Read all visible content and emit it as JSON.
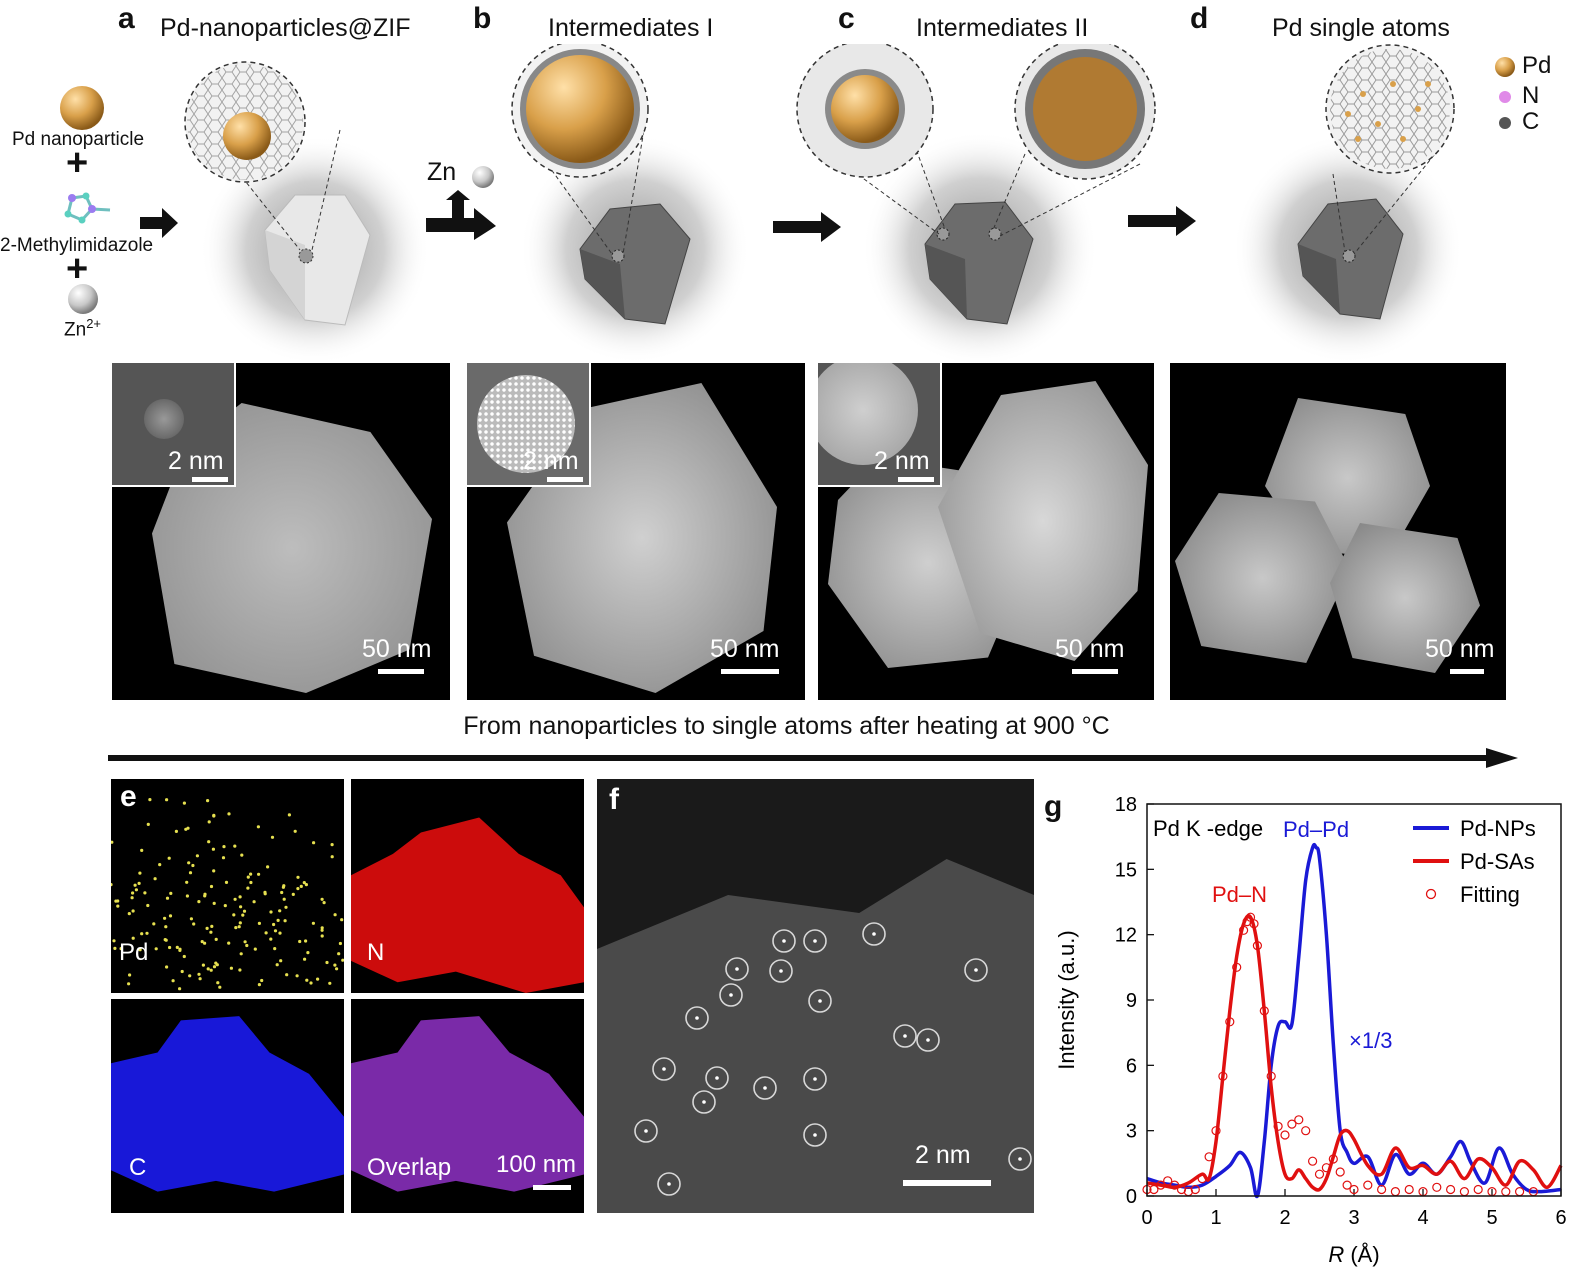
{
  "panels": {
    "a": {
      "letter": "a",
      "title": "Pd-nanoparticles@ZIF"
    },
    "b": {
      "letter": "b",
      "title": "Intermediates I"
    },
    "c": {
      "letter": "c",
      "title": "Intermediates II"
    },
    "d": {
      "letter": "d",
      "title": "Pd single atoms"
    },
    "e": {
      "letter": "e"
    },
    "f": {
      "letter": "f"
    },
    "g": {
      "letter": "g"
    }
  },
  "reactants": {
    "pd_np": "Pd nanoparticle",
    "plus": "+",
    "imidazole": "2-Methylimidazole",
    "zn": "Zn",
    "zn_charge": "2+"
  },
  "zn_release": "Zn",
  "legend": {
    "pd": "Pd",
    "n": "N",
    "c": "C"
  },
  "tem": {
    "inset_scale": "2 nm",
    "main_scale": "50 nm"
  },
  "process_caption": "From nanoparticles to single atoms after heating at 900 °C",
  "eds": {
    "pd": "Pd",
    "n": "N",
    "c": "C",
    "overlap": "Overlap",
    "scale": "100 nm"
  },
  "haadf_scale": "2 nm",
  "colors": {
    "pd_np": "#1a1ad6",
    "pd_sas": "#e01010",
    "fitting": "#e01010",
    "gold": "#d9a04a"
  },
  "chart_data": {
    "type": "line",
    "title": "Pd K -edge",
    "xlabel_italic": "R",
    "xlabel_unit": " (Å)",
    "ylabel": "Intensity (a.u.)",
    "xlim": [
      0,
      6
    ],
    "ylim": [
      0,
      18
    ],
    "xticks": [
      0,
      1,
      2,
      3,
      4,
      5,
      6
    ],
    "yticks": [
      0,
      3,
      6,
      9,
      12,
      15,
      18
    ],
    "annotations": {
      "pd_pd": "Pd–Pd",
      "pd_n": "Pd–N",
      "scale": "×1/3"
    },
    "legend": {
      "pd_nps": "Pd-NPs",
      "pd_sas": "Pd-SAs",
      "fitting": "Fitting"
    },
    "series": [
      {
        "name": "Pd-NPs",
        "x": [
          0,
          0.2,
          0.4,
          0.6,
          0.8,
          1.0,
          1.2,
          1.35,
          1.5,
          1.6,
          1.7,
          1.8,
          1.9,
          2.0,
          2.1,
          2.2,
          2.3,
          2.4,
          2.45,
          2.5,
          2.6,
          2.7,
          2.8,
          2.9,
          3.0,
          3.2,
          3.4,
          3.6,
          3.8,
          4.0,
          4.2,
          4.4,
          4.55,
          4.7,
          4.9,
          5.1,
          5.3,
          5.5,
          5.7,
          6.0
        ],
        "y": [
          0.8,
          0.6,
          0.5,
          0.4,
          0.5,
          0.9,
          1.4,
          2.0,
          1.3,
          0.0,
          2.5,
          6.0,
          7.8,
          8.0,
          7.9,
          11.0,
          14.5,
          16.0,
          16.0,
          15.5,
          12.0,
          7.0,
          3.0,
          2.0,
          1.5,
          1.8,
          0.5,
          1.9,
          1.0,
          1.5,
          1.0,
          1.8,
          2.5,
          1.5,
          0.6,
          2.2,
          1.0,
          0.3,
          0.2,
          0.3
        ]
      },
      {
        "name": "Pd-SAs",
        "x": [
          0,
          0.2,
          0.4,
          0.6,
          0.8,
          0.9,
          1.0,
          1.1,
          1.2,
          1.3,
          1.4,
          1.5,
          1.6,
          1.7,
          1.8,
          1.9,
          2.0,
          2.1,
          2.2,
          2.3,
          2.4,
          2.5,
          2.6,
          2.7,
          2.8,
          2.9,
          3.0,
          3.2,
          3.4,
          3.6,
          3.8,
          4.0,
          4.2,
          4.4,
          4.6,
          4.8,
          5.0,
          5.2,
          5.4,
          5.6,
          5.8,
          6.0
        ],
        "y": [
          0.6,
          0.5,
          0.4,
          0.6,
          1.0,
          0.8,
          2.5,
          5.5,
          8.5,
          11.0,
          12.5,
          12.8,
          11.5,
          8.5,
          5.0,
          2.5,
          1.0,
          0.8,
          1.2,
          0.8,
          0.4,
          0.3,
          0.8,
          1.8,
          2.8,
          3.0,
          2.6,
          1.4,
          1.0,
          2.2,
          1.3,
          1.4,
          1.0,
          1.6,
          0.8,
          1.7,
          1.3,
          0.5,
          1.6,
          1.2,
          0.4,
          1.4
        ]
      },
      {
        "name": "Fitting",
        "x": [
          0,
          0.1,
          0.2,
          0.3,
          0.4,
          0.5,
          0.6,
          0.7,
          0.8,
          0.9,
          1.0,
          1.1,
          1.2,
          1.3,
          1.4,
          1.45,
          1.5,
          1.55,
          1.6,
          1.7,
          1.8,
          1.9,
          2.0,
          2.1,
          2.2,
          2.3,
          2.4,
          2.5,
          2.6,
          2.7,
          2.8,
          2.9,
          3.0,
          3.2,
          3.4,
          3.6,
          3.8,
          4.0,
          4.2,
          4.4,
          4.6,
          4.8,
          5.0,
          5.2,
          5.4,
          5.6
        ],
        "y": [
          0.3,
          0.3,
          0.5,
          0.7,
          0.5,
          0.3,
          0.2,
          0.3,
          0.8,
          1.8,
          3.0,
          5.5,
          8.0,
          10.5,
          12.2,
          12.6,
          12.8,
          12.5,
          11.5,
          8.5,
          5.5,
          3.2,
          2.8,
          3.3,
          3.5,
          3.0,
          1.6,
          1.0,
          1.3,
          1.7,
          1.1,
          0.5,
          0.3,
          0.5,
          0.3,
          0.2,
          0.3,
          0.2,
          0.4,
          0.3,
          0.2,
          0.3,
          0.2,
          0.2,
          0.2,
          0.2
        ]
      }
    ]
  }
}
